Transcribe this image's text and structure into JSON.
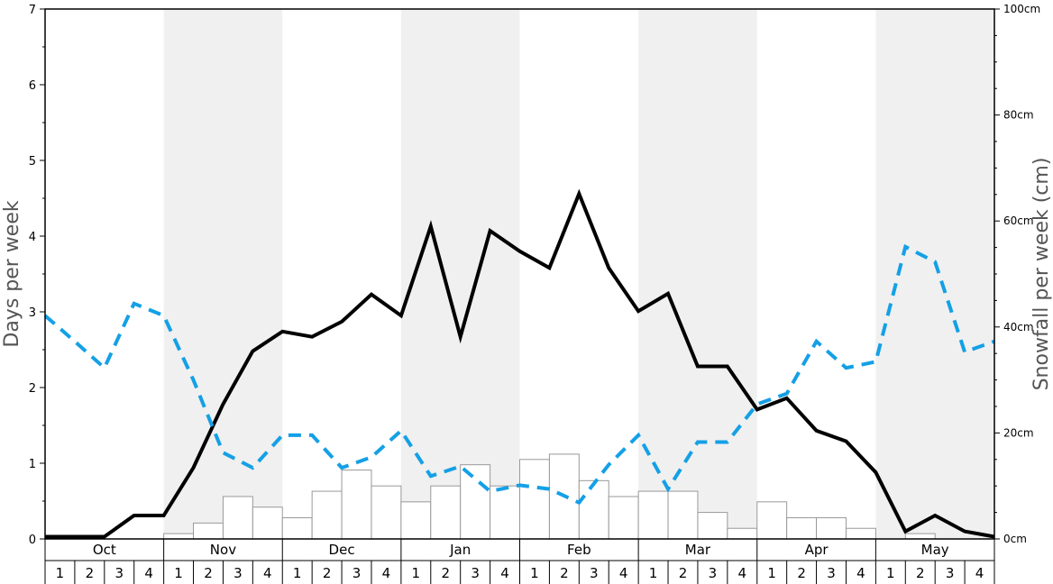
{
  "chart_data": {
    "type": "bar",
    "months": [
      "Oct",
      "Nov",
      "Dec",
      "Jan",
      "Feb",
      "Mar",
      "Apr",
      "May"
    ],
    "weeks": [
      "1",
      "2",
      "3",
      "4"
    ],
    "ylabel_left": "Days per week",
    "ylabel_right": "Snowfall per week (cm)",
    "ylim_left": [
      0,
      7
    ],
    "ylim_right": [
      0,
      100
    ],
    "left_ticks": [
      "0",
      "1",
      "2",
      "3",
      "4",
      "5",
      "6",
      "7"
    ],
    "right_ticks": [
      "0cm",
      "20cm",
      "40cm",
      "60cm",
      "80cm",
      "100cm"
    ],
    "snowfall_cm": [
      0,
      0,
      0,
      0,
      1,
      3,
      8,
      6,
      4,
      9,
      13,
      10,
      7,
      10,
      14,
      10,
      15,
      16,
      11,
      8,
      9,
      9,
      5,
      2,
      7,
      4,
      4,
      2,
      0,
      1,
      0,
      0
    ],
    "snow_days_line": [
      0.03,
      0.03,
      0.03,
      0.31,
      0.31,
      0.94,
      1.78,
      2.48,
      2.74,
      2.67,
      2.87,
      3.23,
      2.95,
      4.13,
      2.67,
      4.07,
      3.8,
      3.58,
      4.56,
      3.58,
      3.01,
      3.24,
      2.28,
      2.28,
      1.71,
      1.86,
      1.43,
      1.29,
      0.88,
      0.1,
      0.31,
      0.1,
      0.03
    ],
    "dashed_line": [
      2.95,
      2.61,
      2.26,
      3.11,
      2.95,
      2.1,
      1.14,
      0.94,
      1.37,
      1.37,
      0.94,
      1.08,
      1.43,
      0.83,
      0.96,
      0.63,
      0.71,
      0.66,
      0.48,
      0.98,
      1.37,
      0.66,
      1.28,
      1.28,
      1.78,
      1.92,
      2.61,
      2.26,
      2.34,
      3.86,
      3.66,
      2.47,
      2.61
    ],
    "colors": {
      "line_solid": "#000000",
      "line_dashed": "#14a0e6",
      "bar_fill": "#ffffff",
      "bar_stroke": "#999999",
      "band_shade": "#f0f0f0"
    }
  }
}
